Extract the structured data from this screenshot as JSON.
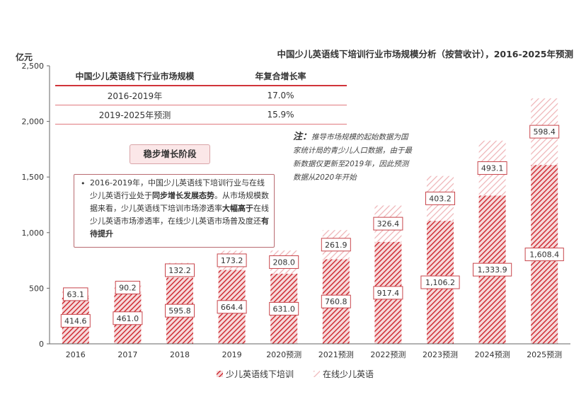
{
  "header": {
    "unit": "亿元",
    "title": "中国少儿英语线下培训行业市场规模分析（按营收计），2016-2025年预测"
  },
  "cagr_table": {
    "headers": [
      "中国少儿英语线下行业市场规模",
      "年复合增长率"
    ],
    "rows": [
      {
        "period": "2016-2019年",
        "rate": "17.0%"
      },
      {
        "period": "2019-2025年预测",
        "rate": "15.9%"
      }
    ]
  },
  "note": {
    "label": "注：",
    "text": "推导市场规模的起始数据为国家统计局的青少儿人口数据，由于最新数据仅更新至2019年，因此预测数据从2020年开始"
  },
  "stage": {
    "label": "稳步增长阶段",
    "text_1": "2016-2019年，中国少儿英语线下培训行业与在线少儿英语行业处于",
    "bold_1": "同步增长发展态势",
    "text_2": "。从市场规模数据来看，少儿英语线下培训市场渗透率",
    "bold_2": "大幅高于",
    "text_3": "在线少儿英语市场渗透率，在线少儿英语市场普及度还",
    "bold_3": "有待提升"
  },
  "colors": {
    "offline": "#d1343a",
    "online": "#f0b9bb",
    "axis": "#333333"
  },
  "chart_data": {
    "type": "bar",
    "stacked": true,
    "categories": [
      "2016",
      "2017",
      "2018",
      "2019",
      "2020预测",
      "2021预测",
      "2022预测",
      "2023预测",
      "2024预测",
      "2025预测"
    ],
    "series": [
      {
        "name": "少儿英语线下培训",
        "values": [
          414.6,
          461.0,
          595.8,
          664.4,
          631.0,
          760.8,
          917.4,
          1106.2,
          1333.9,
          1608.4
        ]
      },
      {
        "name": "在线少儿英语",
        "values": [
          63.1,
          90.2,
          132.2,
          173.2,
          208.0,
          261.9,
          326.4,
          403.2,
          493.1,
          598.4
        ]
      }
    ],
    "value_labels": [
      [
        "414.6",
        "461.0",
        "595.8",
        "664.4",
        "631.0",
        "760.8",
        "917.4",
        "1,106.2",
        "1,333.9",
        "1,608.4"
      ],
      [
        "63.1",
        "90.2",
        "132.2",
        "173.2",
        "208.0",
        "261.9",
        "326.4",
        "403.2",
        "493.1",
        "598.4"
      ]
    ],
    "yticks": [
      "0",
      "500",
      "1,000",
      "1,500",
      "2,000",
      "2,500"
    ],
    "ylim": [
      0,
      2500
    ],
    "legend_position": "bottom-center"
  }
}
